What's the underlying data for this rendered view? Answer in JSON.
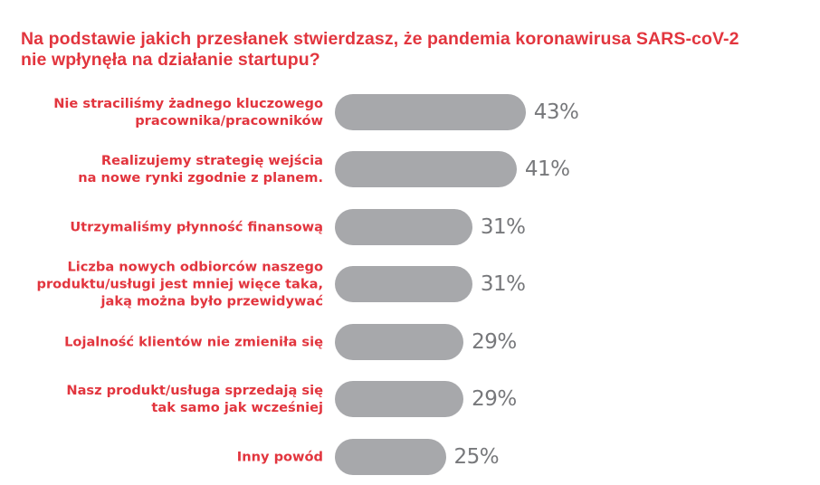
{
  "title": {
    "line1": "Na podstawie jakich przesłanek stwierdzasz, że pandemia koronawirusa SARS-coV-2",
    "line2": "nie wpłynęła na działanie startupu?"
  },
  "colors": {
    "accent": "#e2353e",
    "bar": "#a7a8ab",
    "value_text": "#77787b"
  },
  "chart_data": {
    "type": "bar",
    "orientation": "horizontal",
    "title": "Na podstawie jakich przesłanek stwierdzasz, że pandemia koronawirusa SARS-coV-2 nie wpłynęła na działanie startupu?",
    "xlabel": "",
    "ylabel": "",
    "grid": false,
    "legend": null,
    "unit": "%",
    "categories": [
      "Nie straciliśmy żadnego kluczowego pracownika/pracowników",
      "Realizujemy strategię wejścia na nowe rynki zgodnie z planem.",
      "Utrzymaliśmy płynność finansową",
      "Liczba nowych odbiorców naszego produktu/usługi jest mniej więce taka, jaką można było przewidywać",
      "Lojalność klientów nie zmieniła się",
      "Nasz produkt/usługa sprzedają się tak samo jak wcześniej",
      "Inny powód"
    ],
    "values": [
      43,
      41,
      31,
      31,
      29,
      29,
      25
    ],
    "value_labels": [
      "43%",
      "41%",
      "31%",
      "31%",
      "29%",
      "29%",
      "25%"
    ]
  },
  "rows": [
    {
      "label_lines": [
        "Nie straciliśmy żadnego kluczowego",
        "pracownika/pracowników"
      ],
      "value": "43%"
    },
    {
      "label_lines": [
        "Realizujemy strategię wejścia",
        "na nowe rynki zgodnie z planem."
      ],
      "value": "41%"
    },
    {
      "label_lines": [
        "Utrzymaliśmy płynność finansową"
      ],
      "value": "31%"
    },
    {
      "label_lines": [
        "Liczba nowych odbiorców naszego",
        "produktu/usługi jest mniej więce taka,",
        "jaką można było przewidywać"
      ],
      "value": "31%"
    },
    {
      "label_lines": [
        "Lojalność klientów nie zmieniła się"
      ],
      "value": "29%"
    },
    {
      "label_lines": [
        "Nasz produkt/usługa sprzedają się",
        "tak samo jak wcześniej"
      ],
      "value": "29%"
    },
    {
      "label_lines": [
        "Inny powód"
      ],
      "value": "25%"
    }
  ]
}
